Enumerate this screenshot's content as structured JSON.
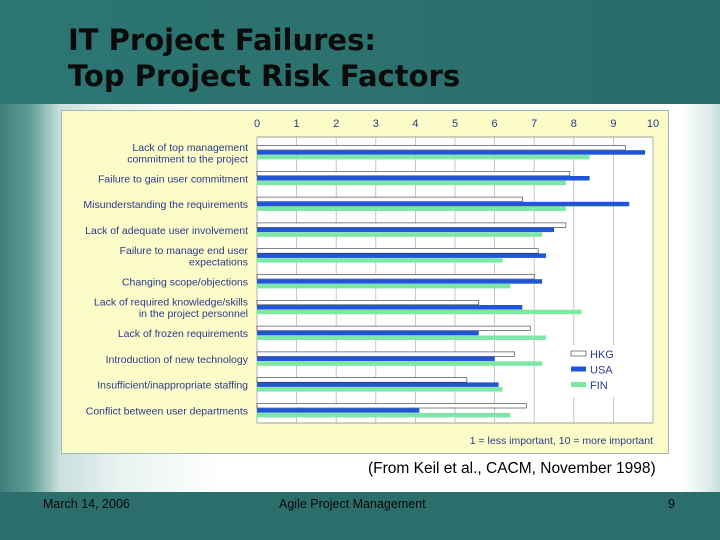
{
  "slide": {
    "title_line1": "IT Project Failures:",
    "title_line2": "Top Project Risk Factors",
    "source": "(From Keil et al., CACM, November 1998)",
    "footer_date": "March 14, 2006",
    "footer_center": "Agile Project Management",
    "page_number": "9"
  },
  "colors": {
    "HKG": "#ffffff",
    "USA": "#1f55d6",
    "FIN": "#7de8a6",
    "plot_bg": "#ffffff",
    "frame_bg": "#fcfcc8"
  },
  "chart_data": {
    "type": "bar",
    "orientation": "horizontal",
    "title": "",
    "xlabel": "",
    "ylabel": "",
    "xlim": [
      0,
      10
    ],
    "ticks": [
      "0",
      "1",
      "2",
      "3",
      "4",
      "5",
      "6",
      "7",
      "8",
      "9",
      "10"
    ],
    "grid": true,
    "legend_position": "bottom-right",
    "note": "1 = less important, 10 = more important",
    "categories": [
      [
        "Lack of top management",
        "commitment to the project"
      ],
      [
        "Failure to gain user commitment"
      ],
      [
        "Misunderstanding the requirements"
      ],
      [
        "Lack of adequate user involvement"
      ],
      [
        "Failure to manage end user",
        "expectations"
      ],
      [
        "Changing scope/objections"
      ],
      [
        "Lack of required knowledge/skills",
        "in the project personnel"
      ],
      [
        "Lack of frozen requirements"
      ],
      [
        "Introduction of new technology"
      ],
      [
        "Insufficient/inappropriate staffing"
      ],
      [
        "Conflict between user departments"
      ]
    ],
    "series": [
      {
        "name": "HKG",
        "values": [
          9.3,
          7.9,
          6.7,
          7.8,
          7.1,
          7.0,
          5.6,
          6.9,
          6.5,
          5.3,
          6.8
        ]
      },
      {
        "name": "USA",
        "values": [
          9.8,
          8.4,
          9.4,
          7.5,
          7.3,
          7.2,
          6.7,
          5.6,
          6.0,
          6.1,
          4.1
        ]
      },
      {
        "name": "FIN",
        "values": [
          8.4,
          7.8,
          7.8,
          7.2,
          6.2,
          6.4,
          8.2,
          7.3,
          7.2,
          6.2,
          6.4
        ]
      }
    ]
  }
}
